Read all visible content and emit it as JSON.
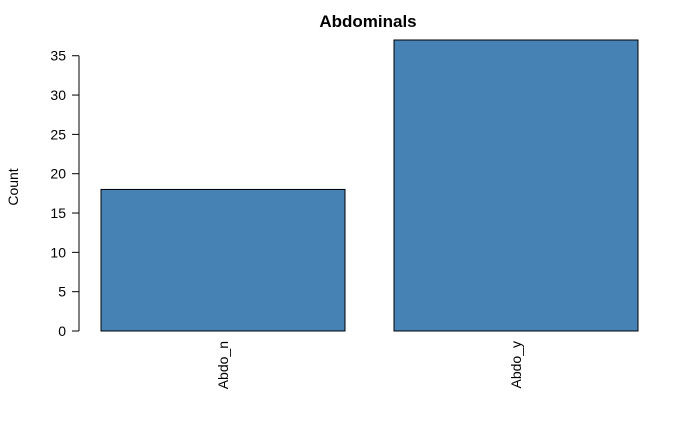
{
  "chart_data": {
    "type": "bar",
    "title": "Abdominals",
    "xlabel": "",
    "ylabel": "Count",
    "categories": [
      "Abdo_n",
      "Abdo_y"
    ],
    "values": [
      18,
      37
    ],
    "ylim": [
      0,
      37
    ],
    "yticks": [
      0,
      5,
      10,
      15,
      20,
      25,
      30,
      35
    ],
    "bar_color": "#4682B4",
    "grid": false,
    "legend": "none"
  }
}
